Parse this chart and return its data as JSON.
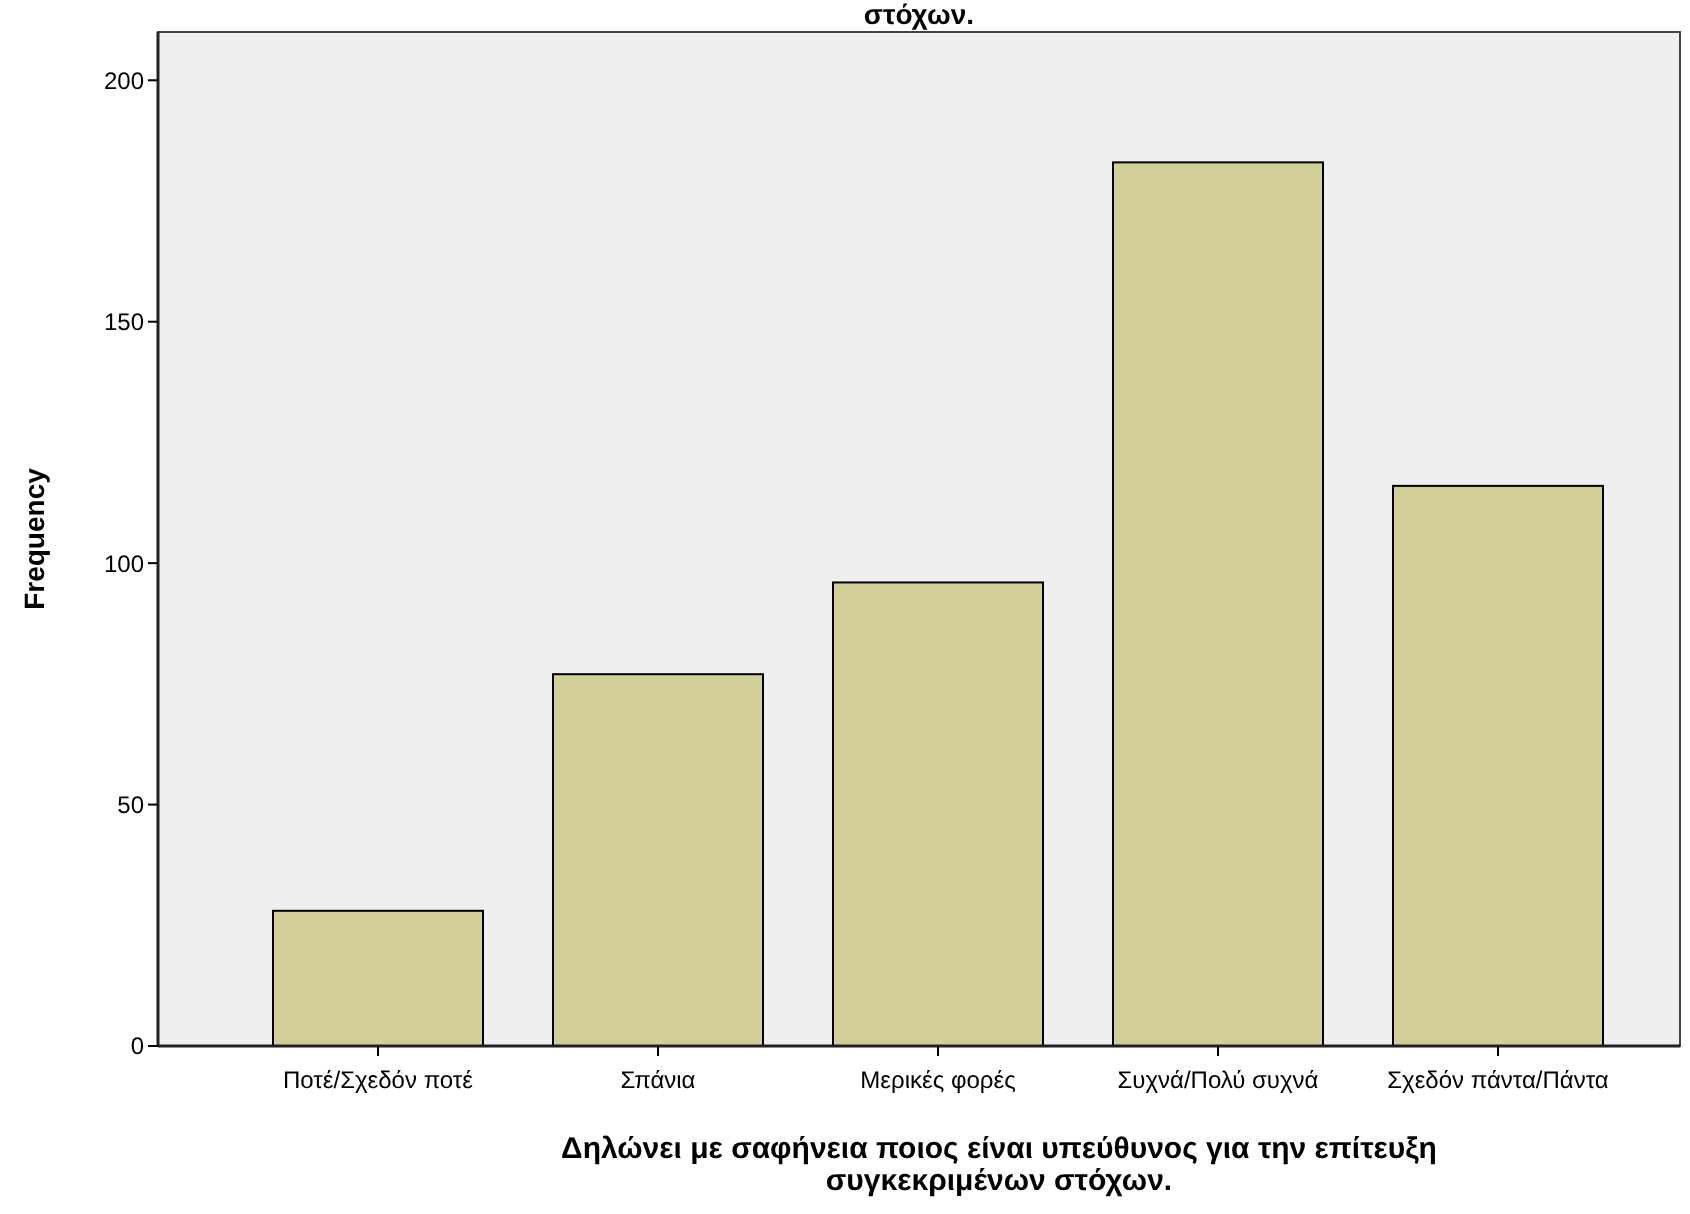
{
  "chart_data": {
    "type": "bar",
    "title": "στόχων.",
    "xlabel": "Δηλώνει με σαφήνεια ποιος είναι υπεύθυνος για την επίτευξη συγκεκριμένων στόχων.",
    "ylabel": "Frequency",
    "categories": [
      "Ποτέ/Σχεδόν ποτέ",
      "Σπάνια",
      "Μερικές φορές",
      "Συχνά/Πολύ συχνά",
      "Σχεδόν πάντα/Πάντα"
    ],
    "values": [
      28,
      77,
      96,
      183,
      116
    ],
    "color": "#d3ce97",
    "ylim": [
      0,
      210
    ],
    "yticks": [
      0,
      50,
      100,
      150,
      200
    ],
    "grid": false
  }
}
